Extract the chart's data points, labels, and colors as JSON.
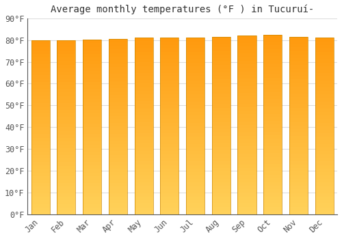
{
  "title": "Average monthly temperatures (°F ) in Tucuruí-",
  "months": [
    "Jan",
    "Feb",
    "Mar",
    "Apr",
    "May",
    "Jun",
    "Jul",
    "Aug",
    "Sep",
    "Oct",
    "Nov",
    "Dec"
  ],
  "values": [
    80.0,
    79.9,
    80.1,
    80.5,
    81.1,
    81.0,
    81.0,
    81.5,
    82.0,
    82.5,
    81.5,
    81.0
  ],
  "ylim": [
    0,
    90
  ],
  "yticks": [
    0,
    10,
    20,
    30,
    40,
    50,
    60,
    70,
    80,
    90
  ],
  "bar_color_mid": "#FFA500",
  "bar_color_light": "#FFD060",
  "bar_edge_color": "#CC8800",
  "background_color": "#FFFFFF",
  "plot_bg_color": "#FFFFFF",
  "grid_color": "#DDDDDD",
  "title_fontsize": 10,
  "tick_fontsize": 8.5,
  "bar_width": 0.72
}
